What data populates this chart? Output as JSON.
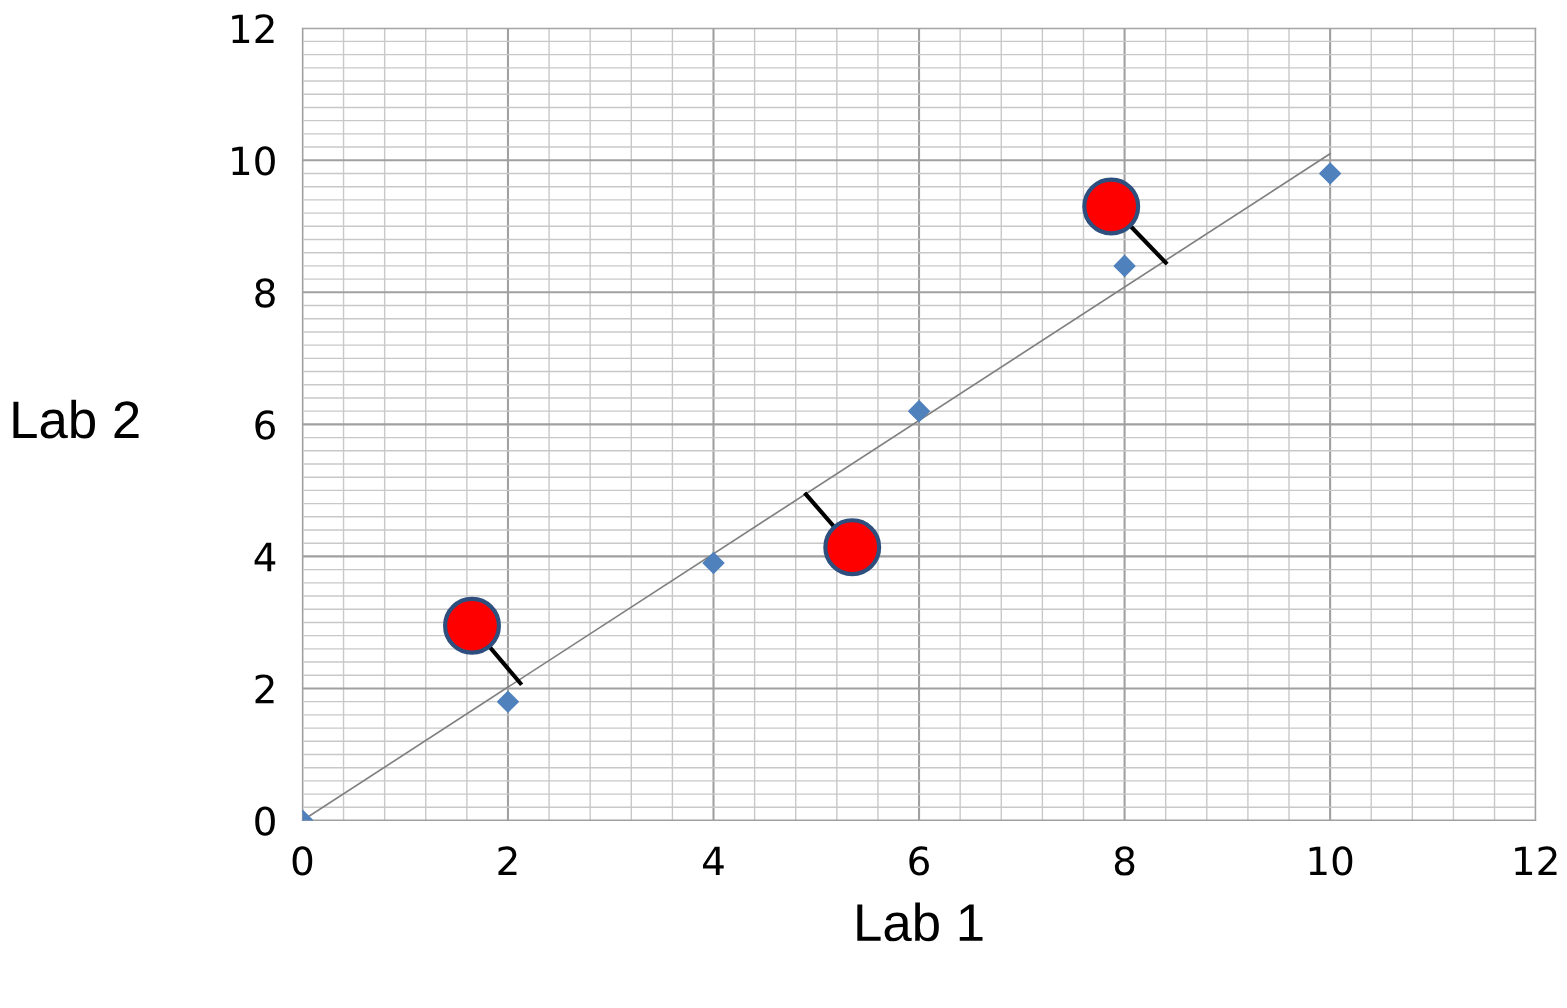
{
  "chart_data": {
    "type": "scatter",
    "xlabel": "Lab 1",
    "ylabel": "Lab 2",
    "xlim": [
      0,
      12
    ],
    "ylim": [
      0,
      12
    ],
    "xticks": [
      0,
      2,
      4,
      6,
      8,
      10,
      12
    ],
    "yticks": [
      0,
      2,
      4,
      6,
      8,
      10,
      12
    ],
    "grid": true,
    "legend": false,
    "series": [
      {
        "type": "line",
        "color": "#808080",
        "x": [
          0,
          10
        ],
        "values": [
          0,
          10.1
        ],
        "marker": "none",
        "line_style": "solid"
      },
      {
        "type": "line",
        "color": "#000000",
        "x": [
          1.8,
          2.12
        ],
        "values": [
          2.67,
          2.08
        ],
        "marker": "none",
        "line_style": "solid"
      },
      {
        "type": "line",
        "color": "#000000",
        "x": [
          4.9,
          5.19
        ],
        "values": [
          4.94,
          4.42
        ],
        "marker": "none",
        "line_style": "solid"
      },
      {
        "type": "line",
        "color": "#000000",
        "x": [
          8.04,
          8.4
        ],
        "values": [
          9.03,
          8.45
        ],
        "marker": "none",
        "line_style": "solid"
      },
      {
        "color": "#4f81bd",
        "x": [
          0,
          2,
          4,
          6,
          8,
          10
        ],
        "values": [
          0,
          1.8,
          3.9,
          6.2,
          8.4,
          9.8
        ],
        "marker": "diamond"
      },
      {
        "color": "#ff0000",
        "x": [
          1.65,
          5.35,
          7.87
        ],
        "values": [
          2.95,
          4.14,
          9.3
        ],
        "marker": "circle"
      }
    ]
  }
}
